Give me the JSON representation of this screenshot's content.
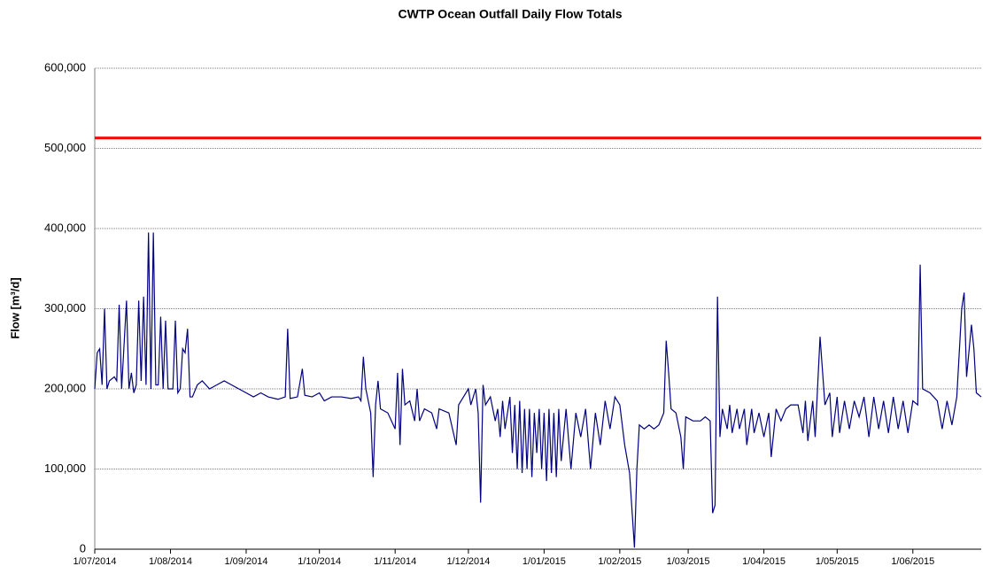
{
  "chart_data": {
    "type": "line",
    "title": "CWTP Ocean Outfall Daily Flow Totals",
    "y_label": "Flow [m³/d]",
    "color": "#000080",
    "grid": true,
    "xlim": [
      "2014-07-01",
      "2015-06-29"
    ],
    "xticks": [
      {
        "value": "2014-07-01",
        "label": "1/07/2014"
      },
      {
        "value": "2014-08-01",
        "label": "1/08/2014"
      },
      {
        "value": "2014-09-01",
        "label": "1/09/2014"
      },
      {
        "value": "2014-10-01",
        "label": "1/10/2014"
      },
      {
        "value": "2014-11-01",
        "label": "1/11/2014"
      },
      {
        "value": "2014-12-01",
        "label": "1/12/2014"
      },
      {
        "value": "2015-01-01",
        "label": "1/01/2015"
      },
      {
        "value": "2015-02-01",
        "label": "1/02/2015"
      },
      {
        "value": "2015-03-01",
        "label": "1/03/2015"
      },
      {
        "value": "2015-04-01",
        "label": "1/04/2015"
      },
      {
        "value": "2015-05-01",
        "label": "1/05/2015"
      },
      {
        "value": "2015-06-01",
        "label": "1/06/2015"
      }
    ],
    "ylim": [
      0,
      600000
    ],
    "yticks": [
      0,
      {
        "value": 100000,
        "label": "100,000"
      },
      {
        "value": 200000,
        "label": "200,000"
      },
      {
        "value": 300000,
        "label": "300,000"
      },
      {
        "value": 400000,
        "label": "400,000"
      },
      {
        "value": 500000,
        "label": "500,000"
      },
      {
        "value": 600000,
        "label": "600,000"
      }
    ],
    "reference_lines": [
      {
        "value": 513000,
        "color": "#ff0000"
      }
    ],
    "x": [
      "2014-07-01",
      "2014-07-02",
      "2014-07-03",
      "2014-07-04",
      "2014-07-05",
      "2014-07-06",
      "2014-07-07",
      "2014-07-09",
      "2014-07-10",
      "2014-07-11",
      "2014-07-12",
      "2014-07-14",
      "2014-07-15",
      "2014-07-16",
      "2014-07-17",
      "2014-07-18",
      "2014-07-19",
      "2014-07-20",
      "2014-07-21",
      "2014-07-22",
      "2014-07-23",
      "2014-07-24",
      "2014-07-25",
      "2014-07-26",
      "2014-07-27",
      "2014-07-28",
      "2014-07-29",
      "2014-07-30",
      "2014-07-31",
      "2014-08-02",
      "2014-08-03",
      "2014-08-04",
      "2014-08-05",
      "2014-08-06",
      "2014-08-07",
      "2014-08-08",
      "2014-08-09",
      "2014-08-10",
      "2014-08-12",
      "2014-08-14",
      "2014-08-17",
      "2014-08-20",
      "2014-08-23",
      "2014-08-26",
      "2014-08-29",
      "2014-09-01",
      "2014-09-04",
      "2014-09-07",
      "2014-09-10",
      "2014-09-14",
      "2014-09-17",
      "2014-09-18",
      "2014-09-19",
      "2014-09-22",
      "2014-09-24",
      "2014-09-25",
      "2014-09-28",
      "2014-10-01",
      "2014-10-03",
      "2014-10-06",
      "2014-10-10",
      "2014-10-14",
      "2014-10-17",
      "2014-10-18",
      "2014-10-19",
      "2014-10-20",
      "2014-10-22",
      "2014-10-23",
      "2014-10-24",
      "2014-10-25",
      "2014-10-26",
      "2014-10-29",
      "2014-11-01",
      "2014-11-02",
      "2014-11-03",
      "2014-11-04",
      "2014-11-05",
      "2014-11-07",
      "2014-11-09",
      "2014-11-10",
      "2014-11-11",
      "2014-11-13",
      "2014-11-16",
      "2014-11-18",
      "2014-11-19",
      "2014-11-23",
      "2014-11-26",
      "2014-11-27",
      "2014-11-29",
      "2014-12-01",
      "2014-12-02",
      "2014-12-04",
      "2014-12-05",
      "2014-12-06",
      "2014-12-07",
      "2014-12-08",
      "2014-12-10",
      "2014-12-12",
      "2014-12-13",
      "2014-12-14",
      "2014-12-15",
      "2014-12-16",
      "2014-12-18",
      "2014-12-19",
      "2014-12-20",
      "2014-12-21",
      "2014-12-22",
      "2014-12-23",
      "2014-12-24",
      "2014-12-25",
      "2014-12-26",
      "2014-12-27",
      "2014-12-28",
      "2014-12-29",
      "2014-12-30",
      "2014-12-31",
      "2015-01-01",
      "2015-01-02",
      "2015-01-03",
      "2015-01-04",
      "2015-01-05",
      "2015-01-06",
      "2015-01-07",
      "2015-01-08",
      "2015-01-10",
      "2015-01-12",
      "2015-01-14",
      "2015-01-16",
      "2015-01-18",
      "2015-01-20",
      "2015-01-22",
      "2015-01-24",
      "2015-01-26",
      "2015-01-28",
      "2015-01-30",
      "2015-02-01",
      "2015-02-03",
      "2015-02-05",
      "2015-02-07",
      "2015-02-08",
      "2015-02-09",
      "2015-02-11",
      "2015-02-13",
      "2015-02-15",
      "2015-02-17",
      "2015-02-19",
      "2015-02-20",
      "2015-02-21",
      "2015-02-22",
      "2015-02-24",
      "2015-02-26",
      "2015-02-27",
      "2015-02-28",
      "2015-03-03",
      "2015-03-06",
      "2015-03-08",
      "2015-03-10",
      "2015-03-11",
      "2015-03-12",
      "2015-03-13",
      "2015-03-14",
      "2015-03-15",
      "2015-03-17",
      "2015-03-18",
      "2015-03-19",
      "2015-03-21",
      "2015-03-22",
      "2015-03-24",
      "2015-03-25",
      "2015-03-27",
      "2015-03-28",
      "2015-03-30",
      "2015-04-01",
      "2015-04-03",
      "2015-04-04",
      "2015-04-06",
      "2015-04-08",
      "2015-04-10",
      "2015-04-12",
      "2015-04-15",
      "2015-04-17",
      "2015-04-18",
      "2015-04-19",
      "2015-04-21",
      "2015-04-22",
      "2015-04-24",
      "2015-04-26",
      "2015-04-28",
      "2015-04-29",
      "2015-05-01",
      "2015-05-02",
      "2015-05-04",
      "2015-05-06",
      "2015-05-08",
      "2015-05-10",
      "2015-05-12",
      "2015-05-14",
      "2015-05-16",
      "2015-05-18",
      "2015-05-20",
      "2015-05-22",
      "2015-05-24",
      "2015-05-26",
      "2015-05-28",
      "2015-05-30",
      "2015-06-01",
      "2015-06-03",
      "2015-06-04",
      "2015-06-05",
      "2015-06-08",
      "2015-06-11",
      "2015-06-13",
      "2015-06-15",
      "2015-06-17",
      "2015-06-19",
      "2015-06-21",
      "2015-06-22",
      "2015-06-23",
      "2015-06-25",
      "2015-06-26",
      "2015-06-27",
      "2015-06-29"
    ],
    "values": [
      200000,
      245000,
      250000,
      205000,
      300000,
      200000,
      210000,
      215000,
      210000,
      305000,
      200000,
      310000,
      200000,
      220000,
      195000,
      205000,
      310000,
      210000,
      315000,
      205000,
      395000,
      200000,
      395000,
      205000,
      205000,
      290000,
      200000,
      285000,
      200000,
      200000,
      285000,
      195000,
      200000,
      250000,
      245000,
      275000,
      190000,
      190000,
      205000,
      210000,
      200000,
      205000,
      210000,
      205000,
      200000,
      195000,
      190000,
      195000,
      190000,
      187000,
      190000,
      275000,
      188000,
      190000,
      225000,
      192000,
      190000,
      195000,
      185000,
      190000,
      190000,
      188000,
      190000,
      185000,
      240000,
      200000,
      170000,
      90000,
      180000,
      210000,
      175000,
      170000,
      150000,
      220000,
      130000,
      225000,
      180000,
      185000,
      160000,
      200000,
      160000,
      175000,
      170000,
      150000,
      175000,
      170000,
      130000,
      180000,
      190000,
      200000,
      180000,
      200000,
      170000,
      58000,
      205000,
      180000,
      190000,
      160000,
      175000,
      140000,
      185000,
      150000,
      190000,
      120000,
      180000,
      100000,
      185000,
      95000,
      175000,
      100000,
      175000,
      90000,
      170000,
      120000,
      175000,
      100000,
      170000,
      85000,
      175000,
      95000,
      170000,
      90000,
      175000,
      110000,
      175000,
      100000,
      170000,
      140000,
      175000,
      100000,
      170000,
      130000,
      185000,
      150000,
      190000,
      180000,
      130000,
      95000,
      2000,
      100000,
      155000,
      150000,
      155000,
      150000,
      155000,
      170000,
      260000,
      220000,
      175000,
      170000,
      140000,
      100000,
      165000,
      160000,
      160000,
      165000,
      160000,
      45000,
      55000,
      315000,
      140000,
      175000,
      150000,
      180000,
      145000,
      175000,
      150000,
      175000,
      130000,
      175000,
      145000,
      170000,
      140000,
      170000,
      115000,
      175000,
      160000,
      175000,
      180000,
      180000,
      145000,
      185000,
      135000,
      185000,
      140000,
      265000,
      180000,
      195000,
      140000,
      190000,
      145000,
      185000,
      150000,
      185000,
      165000,
      190000,
      140000,
      190000,
      150000,
      185000,
      145000,
      190000,
      150000,
      185000,
      145000,
      185000,
      180000,
      355000,
      200000,
      195000,
      185000,
      150000,
      185000,
      155000,
      190000,
      300000,
      320000,
      215000,
      280000,
      250000,
      195000,
      190000
    ]
  }
}
